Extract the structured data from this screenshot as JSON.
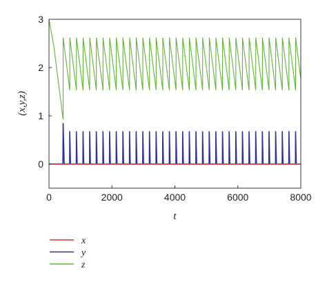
{
  "chart_data": {
    "type": "line",
    "xlabel": "t",
    "ylabel": "(x,y,z)",
    "xlim": [
      0,
      8000
    ],
    "ylim": [
      -0.5,
      3
    ],
    "x_ticks": [
      0,
      2000,
      4000,
      6000,
      8000
    ],
    "y_ticks": [
      0,
      1,
      2,
      3
    ],
    "x_tick_labels": [
      "0",
      "2000",
      "4000",
      "6000",
      "8000"
    ],
    "y_tick_labels": [
      "0",
      "1",
      "2",
      "3"
    ],
    "grid": false,
    "legend_position": "below-left",
    "series": [
      {
        "name": "x",
        "color": "#e8312b",
        "x": [
          0,
          8000
        ],
        "y": [
          0,
          0
        ]
      },
      {
        "name": "y",
        "color": "#2e3192",
        "description": "near-zero baseline with periodic narrow spikes; first spike about 0.85 at t≈450, then regular spikes of about 0.68 with period about 211",
        "baseline": 0.0,
        "first_spike": {
          "t": 450,
          "peak": 0.85
        },
        "periodic_spikes": {
          "start": 660,
          "end": 8000,
          "period": 211,
          "peak": 0.68
        }
      },
      {
        "name": "z",
        "color": "#5fb236",
        "description": "decays from about 3 at t=0 to about 0.92 at t≈450, jumps to about 2.62, then sawtooth oscillation between about 1.53 and 2.62 with period about 211",
        "initial": {
          "t": 0,
          "value": 3.0
        },
        "minimum": {
          "t": 450,
          "value": 0.92
        },
        "sawtooth": {
          "start": 450,
          "end": 8000,
          "period": 211,
          "high": 2.62,
          "low": 1.53
        }
      }
    ]
  }
}
